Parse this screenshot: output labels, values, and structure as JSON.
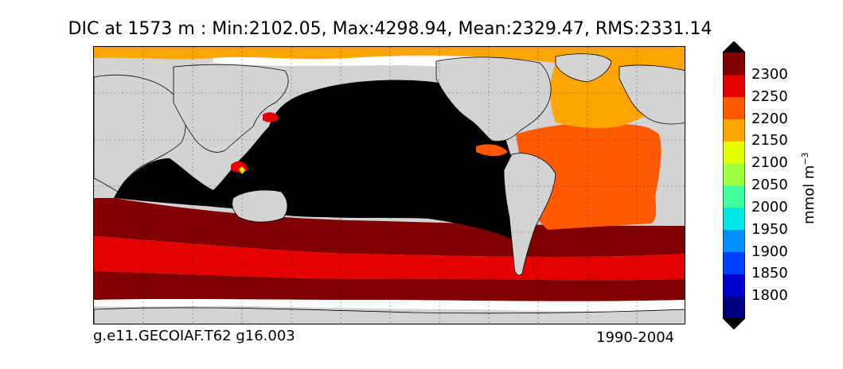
{
  "title": "DIC at 1573 m : Min:2102.05, Max:4298.94, Mean:2329.47, RMS:2331.14",
  "caption_left": "g.e11.GECOIAF.T62 g16.003",
  "caption_right": "1990-2004",
  "colorbar": {
    "unit_base": "mmol m",
    "unit_exponent": "−3",
    "ticks": [
      "2300",
      "2250",
      "2200",
      "2150",
      "2100",
      "2050",
      "2000",
      "1950",
      "1900",
      "1850",
      "1800"
    ],
    "colors": [
      "#000080",
      "#0000cd",
      "#0040ff",
      "#0090ff",
      "#00e5e5",
      "#40ff9f",
      "#9fff40",
      "#e5ff00",
      "#ffa500",
      "#ff5a00",
      "#e50000",
      "#800000"
    ],
    "under_color": "#000000",
    "over_color": "#000000"
  },
  "map": {
    "land_color": "#d3d3d3",
    "missing_color": "#ffffff",
    "high_color": "#000000"
  }
}
